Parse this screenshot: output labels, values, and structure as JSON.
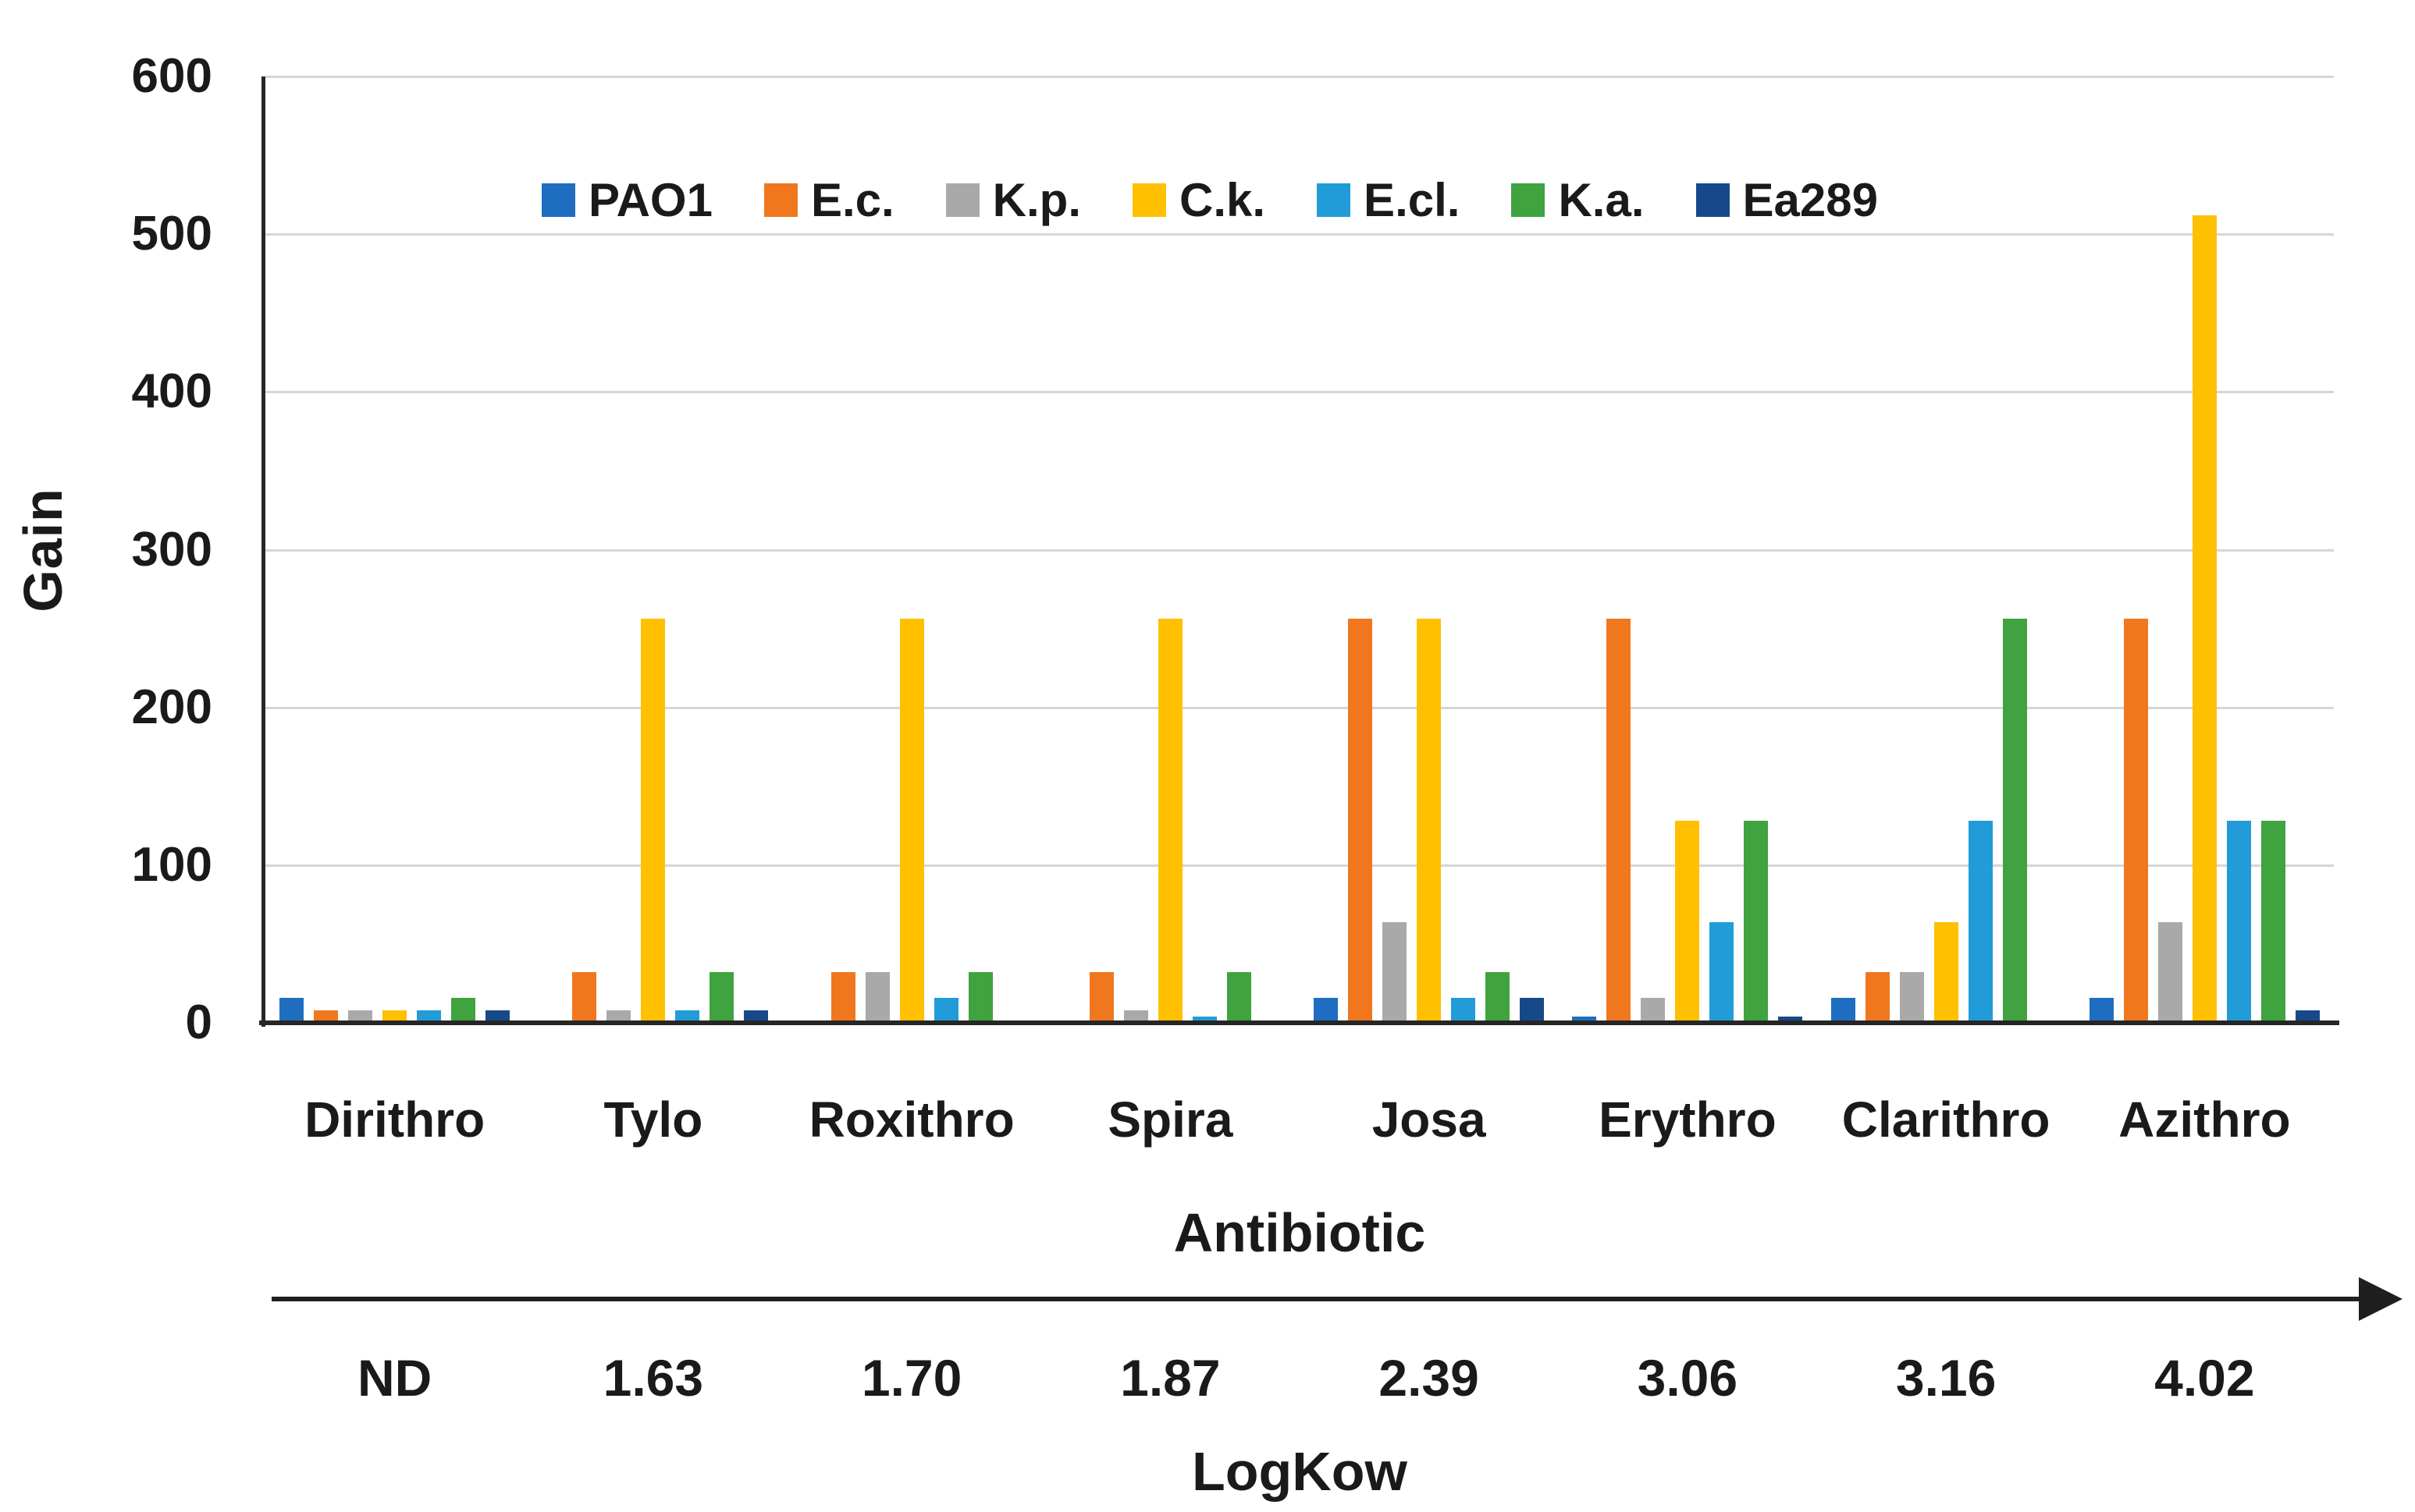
{
  "chart_data": {
    "type": "bar",
    "title": "",
    "ylabel": "Gain",
    "xlabel": "Antibiotic",
    "x2label": "LogKow",
    "ylim": [
      0,
      600
    ],
    "yticks": [
      0,
      100,
      200,
      300,
      400,
      500,
      600
    ],
    "grid": "horizontal-light-gray",
    "legend_position": "top-center-inside",
    "categories": [
      "Dirithro",
      "Tylo",
      "Roxithro",
      "Spira",
      "Josa",
      "Erythro",
      "Clarithro",
      "Azithro"
    ],
    "logkow_values": [
      "ND",
      "1.63",
      "1.70",
      "1.87",
      "2.39",
      "3.06",
      "3.16",
      "4.02"
    ],
    "series": [
      {
        "name": "PAO1",
        "color": "#1f6dc1",
        "values": [
          16,
          0,
          0,
          0,
          16,
          4,
          16,
          16
        ]
      },
      {
        "name": "E.c.",
        "color": "#f0771e",
        "values": [
          8,
          32,
          32,
          32,
          256,
          256,
          32,
          256
        ]
      },
      {
        "name": "K.p.",
        "color": "#a9a9a9",
        "values": [
          8,
          8,
          32,
          8,
          64,
          16,
          32,
          64
        ]
      },
      {
        "name": "C.k.",
        "color": "#ffc000",
        "values": [
          8,
          256,
          256,
          256,
          256,
          128,
          64,
          512
        ]
      },
      {
        "name": "E.cl.",
        "color": "#219cd8",
        "values": [
          8,
          8,
          16,
          4,
          16,
          64,
          128,
          128
        ]
      },
      {
        "name": "K.a.",
        "color": "#3fa33f",
        "values": [
          16,
          32,
          32,
          32,
          32,
          128,
          256,
          128
        ]
      },
      {
        "name": "Ea289",
        "color": "#17498a",
        "values": [
          8,
          8,
          0,
          0,
          16,
          4,
          0,
          8
        ]
      }
    ],
    "axis_colors": {
      "gridline": "#d6d6d6",
      "axis_line": "#262626",
      "text": "#1a1a1a"
    }
  }
}
